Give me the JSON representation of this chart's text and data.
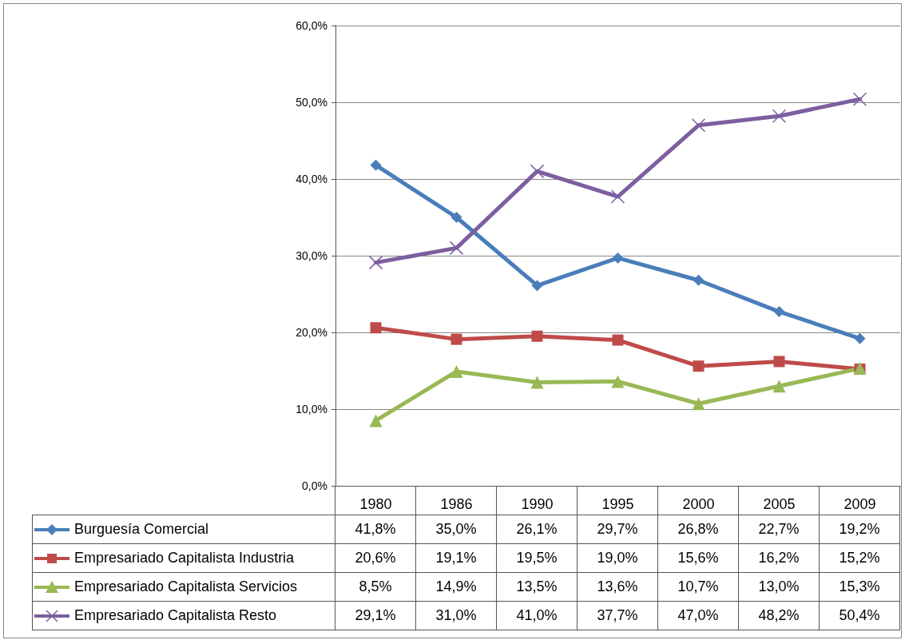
{
  "chart_data": {
    "type": "line",
    "categories": [
      "1980",
      "1986",
      "1990",
      "1995",
      "2000",
      "2005",
      "2009"
    ],
    "series": [
      {
        "name": "Burguesía Comercial",
        "color": "#4a7ebb",
        "marker": "diamond",
        "values": [
          41.8,
          35.0,
          26.1,
          29.7,
          26.8,
          22.7,
          19.2
        ],
        "value_labels": [
          "41,8%",
          "35,0%",
          "26,1%",
          "29,7%",
          "26,8%",
          "22,7%",
          "19,2%"
        ]
      },
      {
        "name": "Empresariado Capitalista Industria",
        "color": "#be4b48",
        "marker": "square",
        "values": [
          20.6,
          19.1,
          19.5,
          19.0,
          15.6,
          16.2,
          15.2
        ],
        "value_labels": [
          "20,6%",
          "19,1%",
          "19,5%",
          "19,0%",
          "15,6%",
          "16,2%",
          "15,2%"
        ]
      },
      {
        "name": "Empresariado Capitalista Servicios",
        "color": "#98b954",
        "marker": "triangle",
        "values": [
          8.5,
          14.9,
          13.5,
          13.6,
          10.7,
          13.0,
          15.3
        ],
        "value_labels": [
          "8,5%",
          "14,9%",
          "13,5%",
          "13,6%",
          "10,7%",
          "13,0%",
          "15,3%"
        ]
      },
      {
        "name": "Empresariado Capitalista Resto",
        "color": "#7d5fa0",
        "marker": "cross",
        "values": [
          29.1,
          31.0,
          41.0,
          37.7,
          47.0,
          48.2,
          50.4
        ],
        "value_labels": [
          "29,1%",
          "31,0%",
          "41,0%",
          "37,7%",
          "47,0%",
          "48,2%",
          "50,4%"
        ]
      }
    ],
    "ylim": [
      0,
      60
    ],
    "yticks": [
      {
        "value": 0,
        "label": "0,0%"
      },
      {
        "value": 10,
        "label": "10,0%"
      },
      {
        "value": 20,
        "label": "20,0%"
      },
      {
        "value": 30,
        "label": "30,0%"
      },
      {
        "value": 40,
        "label": "40,0%"
      },
      {
        "value": 50,
        "label": "50,0%"
      },
      {
        "value": 60,
        "label": "60,0%"
      }
    ],
    "grid": "y",
    "legend": "bottom",
    "line_style": "solid"
  }
}
